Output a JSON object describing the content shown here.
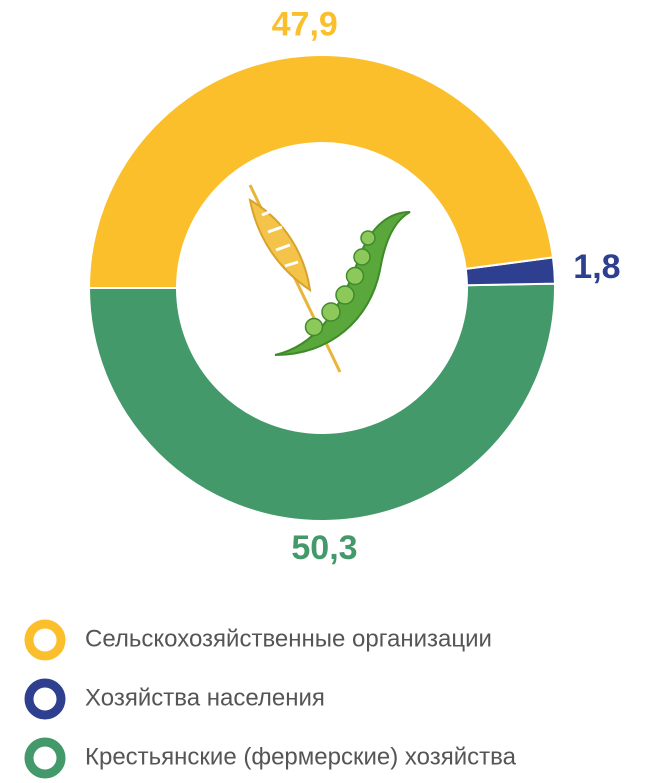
{
  "chart_data": {
    "type": "donut",
    "categories": [
      "Сельскохозяйственные организации",
      "Хозяйства населения",
      "Крестьянские (фермерские) хозяйства"
    ],
    "values": [
      47.9,
      1.8,
      50.3
    ],
    "value_labels": [
      "47,9",
      "1,8",
      "50,3"
    ],
    "colors": [
      "#fbbf2c",
      "#2e3f8f",
      "#43996a"
    ]
  }
}
